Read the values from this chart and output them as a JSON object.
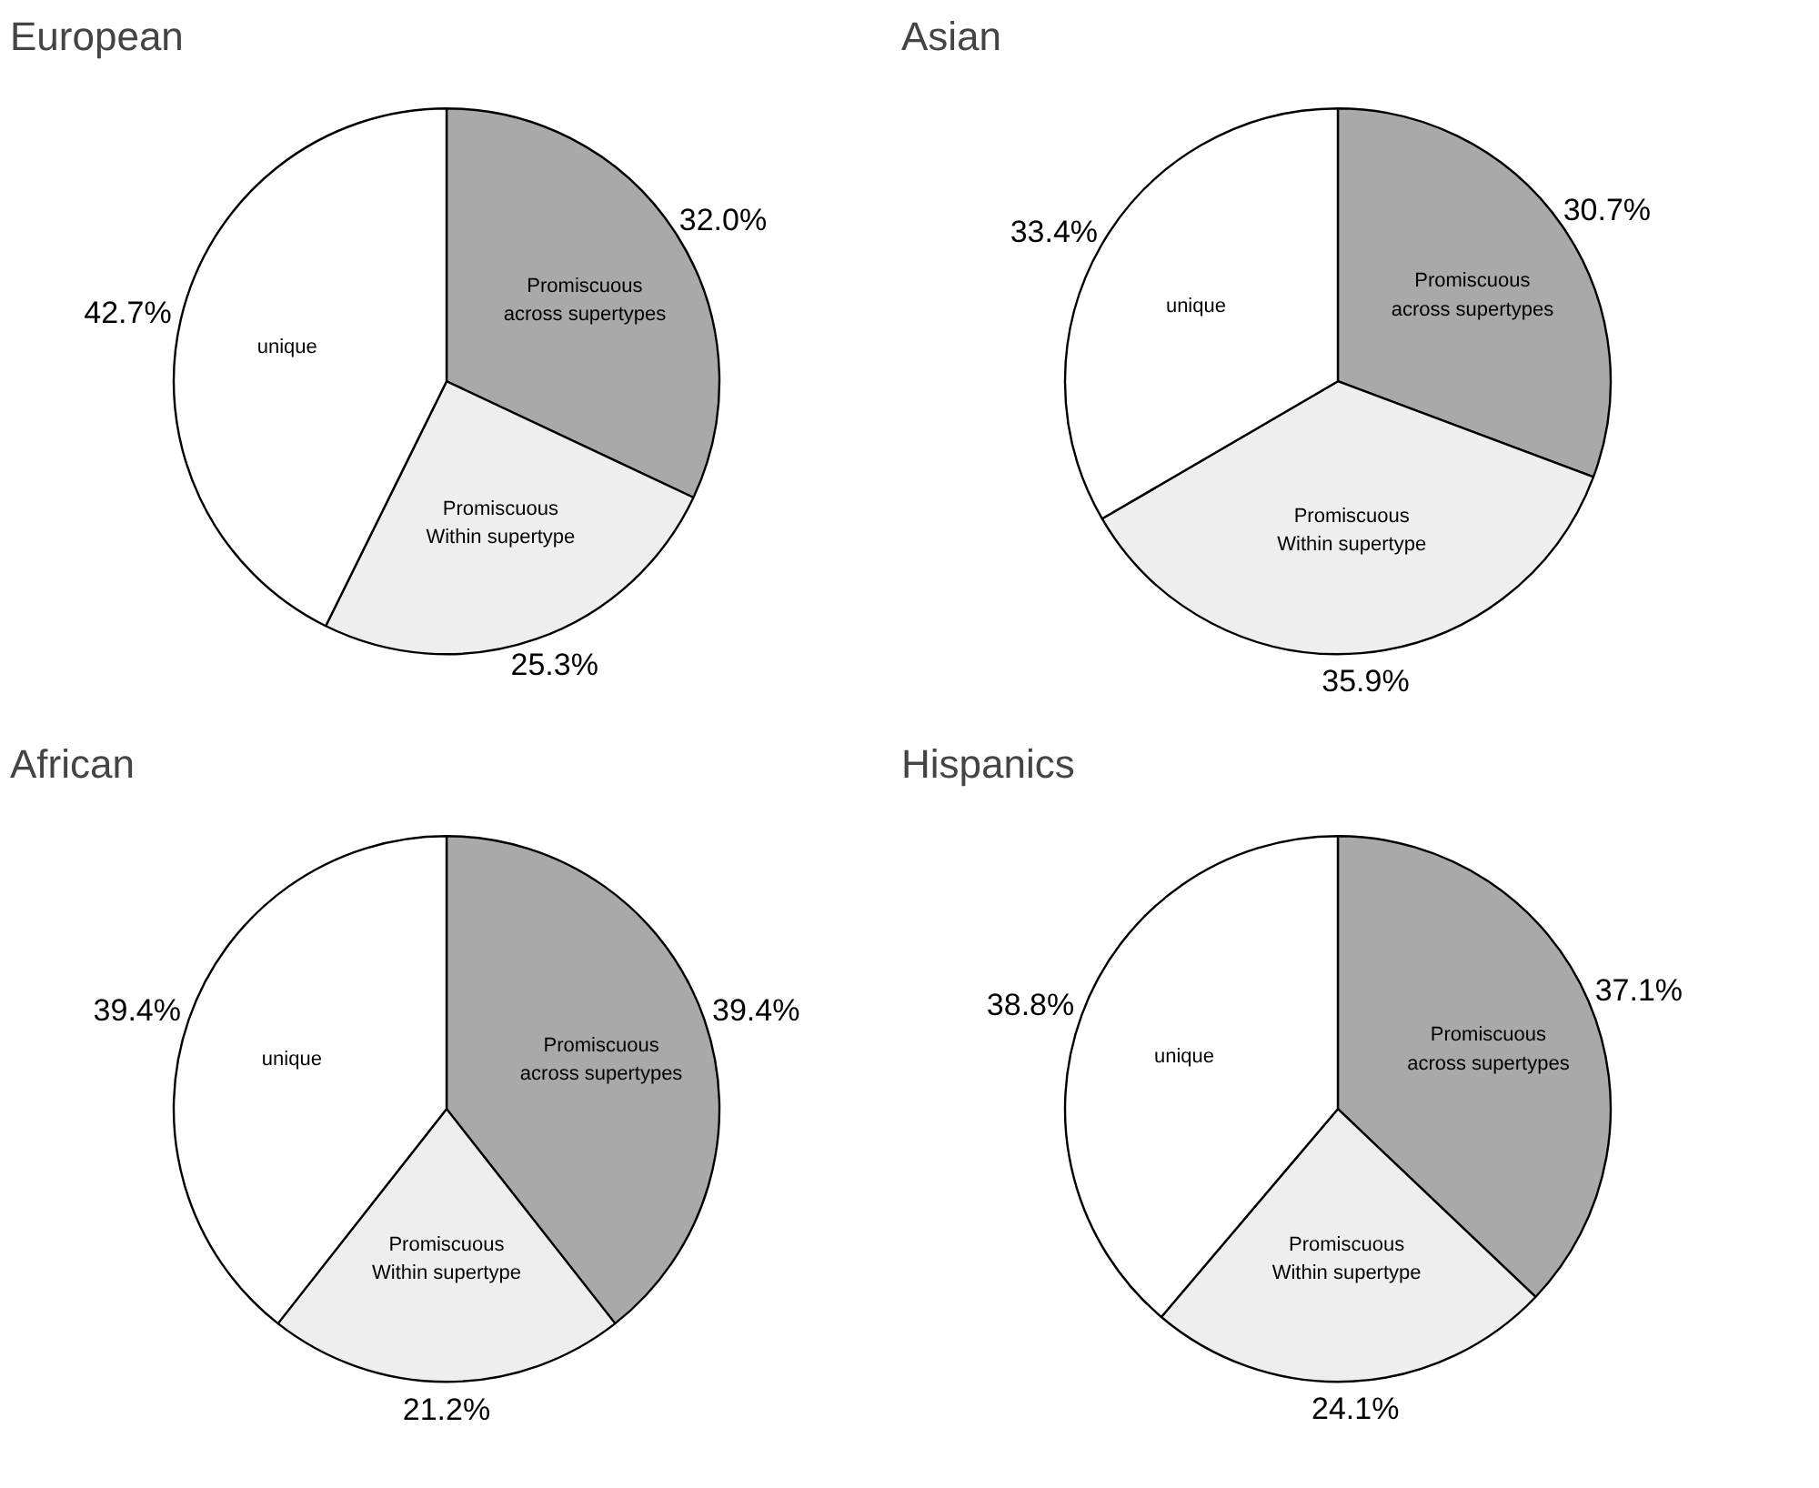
{
  "chart_data": [
    {
      "type": "pie",
      "title": "European",
      "categories": [
        "Promiscuous\nacross supertypes",
        "Promiscuous\nWithin supertype",
        "unique"
      ],
      "values": [
        32.0,
        25.3,
        42.7
      ],
      "colors": [
        "#a9a9a9",
        "#eeeeee",
        "#ffffff"
      ],
      "value_labels": [
        "32.0%",
        "25.3%",
        "42.7%"
      ]
    },
    {
      "type": "pie",
      "title": "Asian",
      "categories": [
        "Promiscuous\nacross supertypes",
        "Promiscuous\nWithin supertype",
        "unique"
      ],
      "values": [
        30.7,
        35.9,
        33.4
      ],
      "colors": [
        "#a9a9a9",
        "#eeeeee",
        "#ffffff"
      ],
      "value_labels": [
        "30.7%",
        "35.9%",
        "33.4%"
      ]
    },
    {
      "type": "pie",
      "title": "African",
      "categories": [
        "Promiscuous\nacross supertypes",
        "Promiscuous\nWithin supertype",
        "unique"
      ],
      "values": [
        39.4,
        21.2,
        39.4
      ],
      "colors": [
        "#a9a9a9",
        "#eeeeee",
        "#ffffff"
      ],
      "value_labels": [
        "39.4%",
        "21.2%",
        "39.4%"
      ]
    },
    {
      "type": "pie",
      "title": "Hispanics",
      "categories": [
        "Promiscuous\nacross supertypes",
        "Promiscuous\nWithin supertype",
        "unique"
      ],
      "values": [
        37.1,
        24.1,
        38.8
      ],
      "colors": [
        "#a9a9a9",
        "#eeeeee",
        "#ffffff"
      ],
      "value_labels": [
        "37.1%",
        "24.1%",
        "38.8%"
      ]
    }
  ]
}
